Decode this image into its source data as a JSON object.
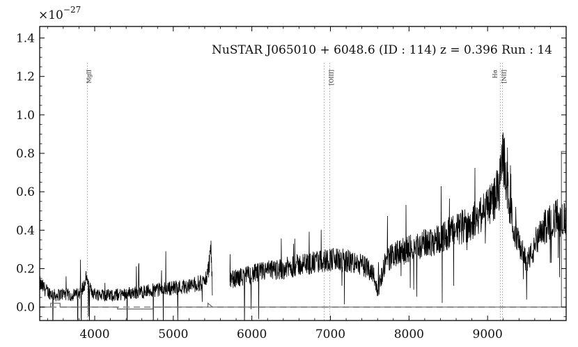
{
  "chart_data": {
    "type": "line",
    "title": "NuSTAR J065010 + 6048.6 (ID : 114)   z = 0.396   Run : 14",
    "xlabel": "",
    "ylabel": "",
    "y_multiplier": "×10",
    "y_exponent": "−27",
    "xlim": [
      3300,
      10000
    ],
    "ylim": [
      -0.07,
      1.46
    ],
    "x_ticks": [
      4000,
      5000,
      6000,
      7000,
      8000,
      9000
    ],
    "x_tick_labels": [
      "4000",
      "5000",
      "6000",
      "7000",
      "8000",
      "9000"
    ],
    "y_ticks": [
      0.0,
      0.2,
      0.4,
      0.6,
      0.8,
      1.0,
      1.2,
      1.4
    ],
    "y_tick_labels": [
      "0.0",
      "0.2",
      "0.4",
      "0.6",
      "0.8",
      "1.0",
      "1.2",
      "1.4"
    ],
    "grid": false,
    "series": [
      {
        "color": "#000000",
        "segments": [
          {
            "x": [
              3300,
              3400,
              3500,
              3600,
              3700,
              3800,
              3880,
              3900,
              3920,
              4000,
              4200,
              4400,
              4600,
              4800,
              5000,
              5200,
              5400,
              5450,
              5480,
              5500
            ],
            "y": [
              0.12,
              0.08,
              0.06,
              0.07,
              0.06,
              0.07,
              0.12,
              0.18,
              0.1,
              0.07,
              0.06,
              0.07,
              0.08,
              0.09,
              0.1,
              0.11,
              0.13,
              0.2,
              0.32,
              0.05
            ]
          },
          {
            "x": [
              5720,
              5800,
              5900,
              6000,
              6100,
              6200,
              6400,
              6600,
              6800,
              7000,
              7200,
              7400,
              7550,
              7600,
              7650,
              7700,
              7800,
              8000,
              8200,
              8400,
              8600,
              8800,
              8900,
              9000,
              9100,
              9150,
              9200,
              9250,
              9300,
              9400,
              9500,
              9600,
              9700,
              9800,
              9900,
              10000
            ],
            "y": [
              0.14,
              0.15,
              0.16,
              0.17,
              0.18,
              0.19,
              0.2,
              0.22,
              0.23,
              0.25,
              0.24,
              0.22,
              0.18,
              0.07,
              0.16,
              0.24,
              0.27,
              0.3,
              0.33,
              0.36,
              0.4,
              0.44,
              0.48,
              0.52,
              0.58,
              0.62,
              0.8,
              0.62,
              0.48,
              0.32,
              0.24,
              0.3,
              0.4,
              0.45,
              0.47,
              0.45
            ]
          }
        ],
        "noise": [
          0.025,
          0.028,
          0.03,
          0.035,
          0.04,
          0.045,
          0.045,
          0.05,
          0.055,
          0.06,
          0.065,
          0.07,
          0.07,
          0.08,
          0.09,
          0.1,
          0.12
        ]
      },
      {
        "color": "#888888",
        "style": "dashed",
        "x": [
          3300,
          10000
        ],
        "y": [
          0.0,
          0.0
        ]
      },
      {
        "color": "#666666",
        "style": "step",
        "x": [
          3300,
          3440,
          3440,
          3560,
          3560,
          4290,
          4290,
          4740,
          4740,
          5440,
          5440,
          5500,
          9940,
          9940,
          10000
        ],
        "y": [
          0.0,
          0.0,
          0.02,
          0.02,
          0.0,
          0.0,
          -0.01,
          -0.01,
          0.0,
          0.0,
          0.02,
          0.0,
          0.0,
          0.81,
          0.81
        ]
      }
    ],
    "lines": [
      {
        "label": "MgII",
        "x": 3906
      },
      {
        "label": "[OIII]",
        "x": 6920
      },
      {
        "label": "[OIII]",
        "x": 6990
      },
      {
        "label": "Hα",
        "x": 9163
      },
      {
        "label": "[NII]",
        "x": 9189
      }
    ]
  }
}
